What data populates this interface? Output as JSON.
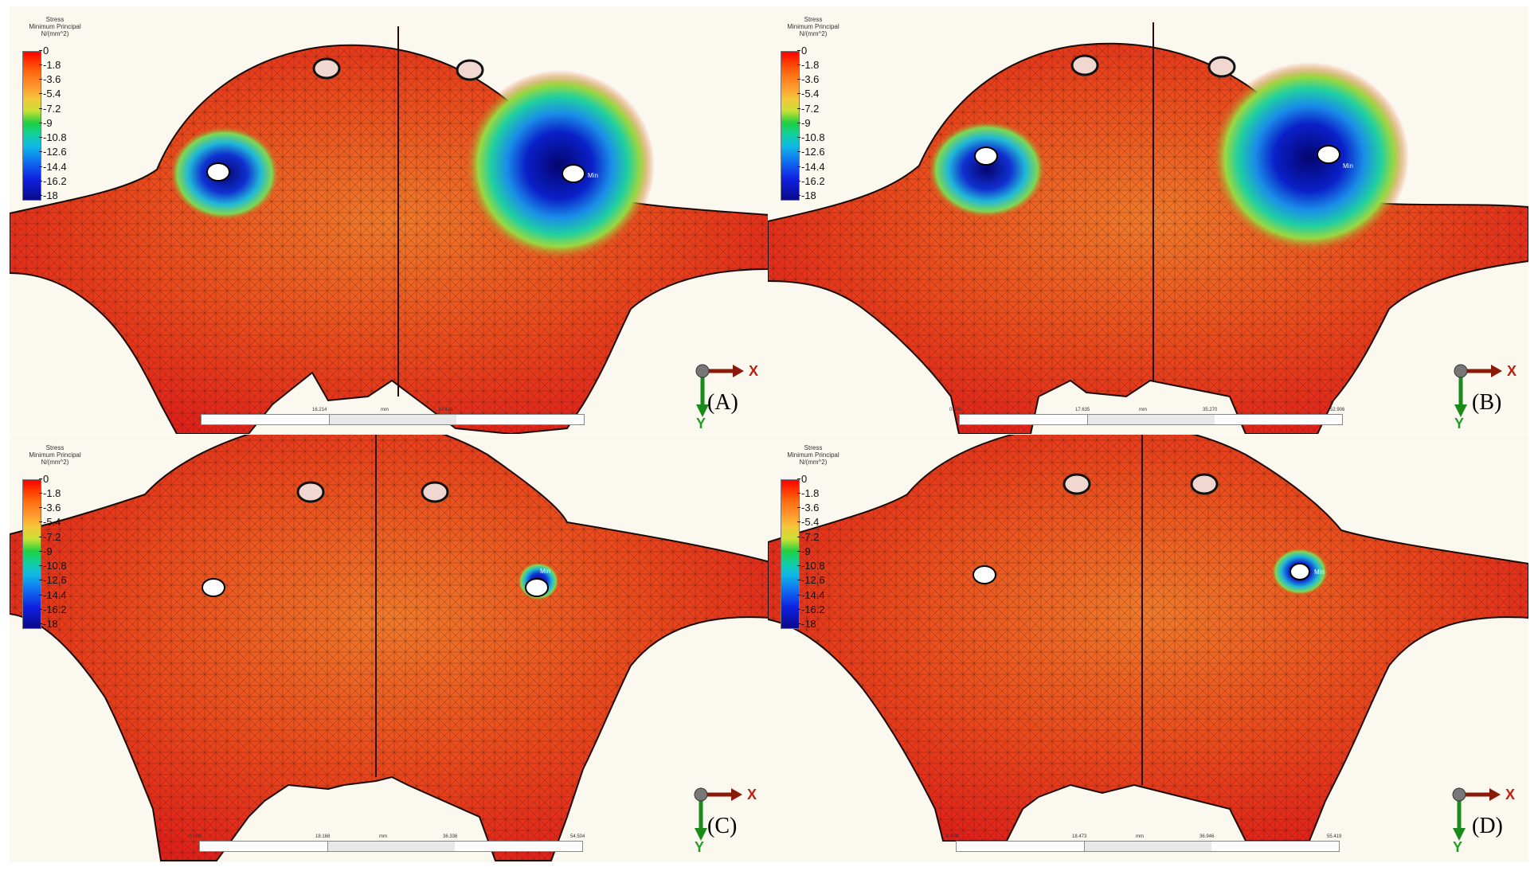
{
  "legend": {
    "title_lines": [
      "Stress",
      "Minimum Principal",
      "N/(mm^2)"
    ],
    "ticks": [
      "0",
      "-1.8",
      "-3.6",
      "-5.4",
      "-7.2",
      "-9",
      "-10.8",
      "-12.6",
      "-14.4",
      "-16.2",
      "-18"
    ],
    "colors": [
      "#ff0000",
      "#ff6a10",
      "#f4c83a",
      "#20d040",
      "#10b8e8",
      "#1020e0",
      "#0a0a8a"
    ]
  },
  "axis_labels": {
    "x": "X",
    "y": "Y"
  },
  "min_marker": "Min",
  "scale_unit": "mm",
  "panels": [
    {
      "label": "(A)",
      "scale_ticks": [
        "",
        "16.214",
        "mm",
        "32.428",
        ""
      ]
    },
    {
      "label": "(B)",
      "scale_ticks": [
        "0.000",
        "17.635",
        "mm",
        "35.270",
        "52.906"
      ]
    },
    {
      "label": "(C)",
      "scale_ticks": [
        "0.000",
        "18.168",
        "mm",
        "36.336",
        "54.504"
      ]
    },
    {
      "label": "(D)",
      "scale_ticks": [
        "0.000",
        "18.473",
        "mm",
        "36.946",
        "55.419"
      ]
    }
  ]
}
